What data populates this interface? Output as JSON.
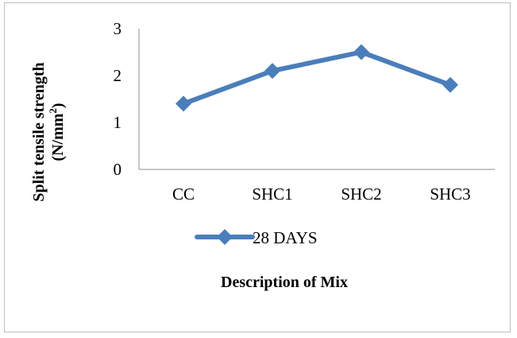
{
  "chart_data": {
    "type": "line",
    "categories": [
      "CC",
      "SHC1",
      "SHC2",
      "SHC3"
    ],
    "series": [
      {
        "name": "28 DAYS",
        "values": [
          1.4,
          2.1,
          2.5,
          1.8
        ],
        "color": "#4a7ebb"
      }
    ],
    "title": "",
    "xlabel": "Description of Mix",
    "ylabel_line1": "Split tensile strength",
    "ylabel_line2_base": "(N/mm",
    "ylabel_line2_sup": "2",
    "ylabel_line2_end": ")",
    "ylim": [
      0,
      3
    ],
    "yticks": [
      "0",
      "1",
      "2",
      "3"
    ],
    "grid": false,
    "legend_position": "bottom",
    "marker": "diamond"
  }
}
